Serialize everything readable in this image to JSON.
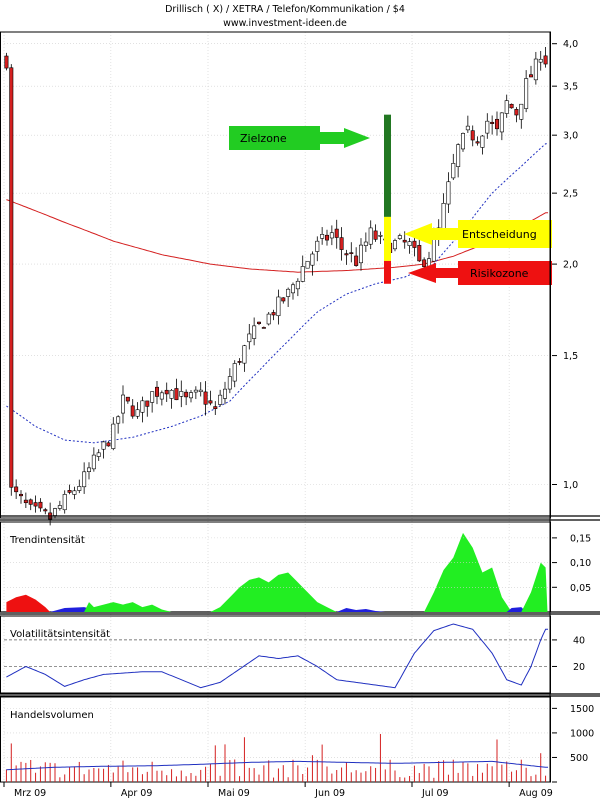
{
  "header": {
    "title": "Drillisch   ( X)    / XETRA / Telefon/Kommunikation / $4",
    "source": "www.investment-ideen.de"
  },
  "chart_data": [
    {
      "type": "candlestick",
      "name": "price",
      "y_scale": "log",
      "ylim": [
        0.9,
        4.15
      ],
      "y_ticks": [
        "1,0",
        "1,5",
        "2,0",
        "2,5",
        "3,0",
        "3,5",
        "4,0"
      ],
      "x_ticks": [
        "Mrz 09",
        "Apr 09",
        "Mai 09",
        "Jun 09",
        "Jul 09",
        "Aug 09"
      ],
      "grid": true,
      "close_path": [
        [
          1,
          0.98
        ],
        [
          5,
          0.92
        ],
        [
          9,
          0.9
        ],
        [
          12,
          0.95
        ],
        [
          16,
          1.02
        ],
        [
          19,
          1.1
        ],
        [
          22,
          1.18
        ],
        [
          24,
          1.3
        ],
        [
          27,
          1.25
        ],
        [
          30,
          1.33
        ],
        [
          33,
          1.36
        ],
        [
          37,
          1.3
        ],
        [
          40,
          1.33
        ],
        [
          43,
          1.26
        ],
        [
          46,
          1.4
        ],
        [
          50,
          1.58
        ],
        [
          54,
          1.7
        ],
        [
          58,
          1.82
        ],
        [
          61,
          1.98
        ],
        [
          64,
          2.12
        ],
        [
          67,
          2.2
        ],
        [
          69,
          2.1
        ],
        [
          72,
          2.02
        ],
        [
          75,
          2.2
        ],
        [
          78,
          2.12
        ],
        [
          81,
          2.14
        ],
        [
          83,
          2.12
        ],
        [
          85,
          2.0
        ],
        [
          87,
          2.06
        ],
        [
          89,
          2.22
        ],
        [
          91,
          2.55
        ],
        [
          93,
          2.88
        ],
        [
          95,
          3.02
        ],
        [
          97,
          2.98
        ],
        [
          99,
          3.14
        ],
        [
          101,
          3.02
        ],
        [
          103,
          3.32
        ],
        [
          105,
          3.22
        ],
        [
          107,
          3.52
        ],
        [
          109,
          3.72
        ],
        [
          110,
          3.9
        ],
        [
          111,
          3.8
        ]
      ],
      "moving_averages": [
        {
          "color": "#d42020",
          "style": "solid",
          "points": [
            [
              0,
              2.45
            ],
            [
              12,
              2.28
            ],
            [
              22,
              2.15
            ],
            [
              32,
              2.06
            ],
            [
              42,
              2.0
            ],
            [
              50,
              1.97
            ],
            [
              60,
              1.95
            ],
            [
              70,
              1.96
            ],
            [
              80,
              1.98
            ],
            [
              86,
              2.0
            ],
            [
              92,
              2.05
            ],
            [
              100,
              2.15
            ],
            [
              106,
              2.25
            ],
            [
              111,
              2.35
            ]
          ]
        },
        {
          "color": "#2030c0",
          "style": "dashed",
          "points": [
            [
              0,
              1.28
            ],
            [
              6,
              1.2
            ],
            [
              12,
              1.15
            ],
            [
              18,
              1.14
            ],
            [
              26,
              1.16
            ],
            [
              34,
              1.2
            ],
            [
              40,
              1.24
            ],
            [
              46,
              1.3
            ],
            [
              52,
              1.43
            ],
            [
              58,
              1.57
            ],
            [
              64,
              1.72
            ],
            [
              70,
              1.82
            ],
            [
              76,
              1.88
            ],
            [
              82,
              1.92
            ],
            [
              88,
              2.0
            ],
            [
              94,
              2.22
            ],
            [
              100,
              2.5
            ],
            [
              106,
              2.72
            ],
            [
              111,
              2.92
            ]
          ]
        }
      ],
      "annotations": [
        {
          "label": "Zielzone",
          "color": "#22cc22"
        },
        {
          "label": "Entscheidung",
          "color": "#ffff00"
        },
        {
          "label": "Risikozone",
          "color": "#ee1111"
        }
      ],
      "zone_bar": [
        {
          "from": 2.32,
          "to": 3.2,
          "color": "#227722"
        },
        {
          "from": 2.02,
          "to": 2.32,
          "color": "#ffff00"
        },
        {
          "from": 1.88,
          "to": 2.02,
          "color": "#ee1111"
        }
      ]
    },
    {
      "type": "area",
      "name": "Trendintensität",
      "title": "Trendintensität",
      "ylim": [
        0,
        0.17
      ],
      "y_ticks": [
        "0,05",
        "0,10",
        "0,15"
      ],
      "segments": [
        {
          "color": "#ee1111",
          "points": [
            [
              0,
              0.02
            ],
            [
              2,
              0.03
            ],
            [
              4,
              0.035
            ],
            [
              6,
              0.025
            ],
            [
              8,
              0.01
            ],
            [
              9,
              0
            ]
          ]
        },
        {
          "color": "#2020dd",
          "points": [
            [
              9,
              0
            ],
            [
              12,
              0.008
            ],
            [
              16,
              0.01
            ],
            [
              18,
              0.005
            ],
            [
              20,
              0
            ]
          ]
        },
        {
          "color": "#22ee22",
          "points": [
            [
              16,
              0
            ],
            [
              17,
              0.02
            ],
            [
              18,
              0.01
            ],
            [
              20,
              0.015
            ],
            [
              22,
              0.02
            ],
            [
              24,
              0.015
            ],
            [
              26,
              0.02
            ],
            [
              28,
              0.01
            ],
            [
              30,
              0.015
            ],
            [
              32,
              0.005
            ],
            [
              34,
              0.0
            ]
          ]
        },
        {
          "color": "#22ee22",
          "points": [
            [
              42,
              0
            ],
            [
              44,
              0.01
            ],
            [
              46,
              0.03
            ],
            [
              48,
              0.05
            ],
            [
              50,
              0.065
            ],
            [
              52,
              0.07
            ],
            [
              54,
              0.06
            ],
            [
              56,
              0.075
            ],
            [
              58,
              0.08
            ],
            [
              60,
              0.06
            ],
            [
              62,
              0.04
            ],
            [
              64,
              0.02
            ],
            [
              66,
              0.01
            ],
            [
              68,
              0
            ]
          ]
        },
        {
          "color": "#2020dd",
          "points": [
            [
              68,
              0
            ],
            [
              70,
              0.008
            ],
            [
              72,
              0.004
            ],
            [
              74,
              0.006
            ],
            [
              76,
              0.002
            ],
            [
              78,
              0
            ]
          ]
        },
        {
          "color": "#22ee22",
          "points": [
            [
              86,
              0
            ],
            [
              88,
              0.04
            ],
            [
              90,
              0.085
            ],
            [
              92,
              0.11
            ],
            [
              94,
              0.16
            ],
            [
              96,
              0.13
            ],
            [
              98,
              0.08
            ],
            [
              100,
              0.09
            ],
            [
              102,
              0.03
            ],
            [
              104,
              0.0
            ]
          ]
        },
        {
          "color": "#2020dd",
          "points": [
            [
              103,
              0
            ],
            [
              104,
              0.008
            ],
            [
              106,
              0.01
            ],
            [
              107,
              0
            ]
          ]
        },
        {
          "color": "#22ee22",
          "points": [
            [
              106,
              0
            ],
            [
              108,
              0.04
            ],
            [
              110,
              0.1
            ],
            [
              111,
              0.09
            ],
            [
              111.4,
              0
            ]
          ]
        }
      ]
    },
    {
      "type": "line",
      "name": "Volatilitätsintensität",
      "title": "Volatilitätsintensität",
      "ylim": [
        0,
        55
      ],
      "y_ticks": [
        "20",
        "40"
      ],
      "reference_lines": [
        20,
        40
      ],
      "points": [
        [
          0,
          12
        ],
        [
          4,
          20
        ],
        [
          8,
          14
        ],
        [
          12,
          5
        ],
        [
          16,
          10
        ],
        [
          20,
          14
        ],
        [
          24,
          15
        ],
        [
          28,
          16
        ],
        [
          32,
          16
        ],
        [
          36,
          10
        ],
        [
          40,
          4
        ],
        [
          44,
          8
        ],
        [
          48,
          18
        ],
        [
          52,
          28
        ],
        [
          56,
          26
        ],
        [
          60,
          28
        ],
        [
          64,
          20
        ],
        [
          68,
          10
        ],
        [
          72,
          8
        ],
        [
          76,
          6
        ],
        [
          80,
          4
        ],
        [
          84,
          30
        ],
        [
          88,
          47
        ],
        [
          92,
          52
        ],
        [
          96,
          48
        ],
        [
          100,
          30
        ],
        [
          103,
          10
        ],
        [
          106,
          6
        ],
        [
          108,
          20
        ],
        [
          110,
          40
        ],
        [
          111,
          48
        ]
      ]
    },
    {
      "type": "bar",
      "name": "Handelsvolumen",
      "title": "Handelsvolumen",
      "ylim": [
        0,
        1650
      ],
      "y_ticks": [
        "500",
        "1000",
        "1500"
      ],
      "bar_color": "#d42020",
      "average_line": [
        [
          0,
          250
        ],
        [
          10,
          300
        ],
        [
          20,
          320
        ],
        [
          30,
          330
        ],
        [
          40,
          360
        ],
        [
          50,
          400
        ],
        [
          60,
          420
        ],
        [
          70,
          400
        ],
        [
          80,
          380
        ],
        [
          90,
          400
        ],
        [
          100,
          420
        ],
        [
          111,
          300
        ]
      ]
    }
  ]
}
